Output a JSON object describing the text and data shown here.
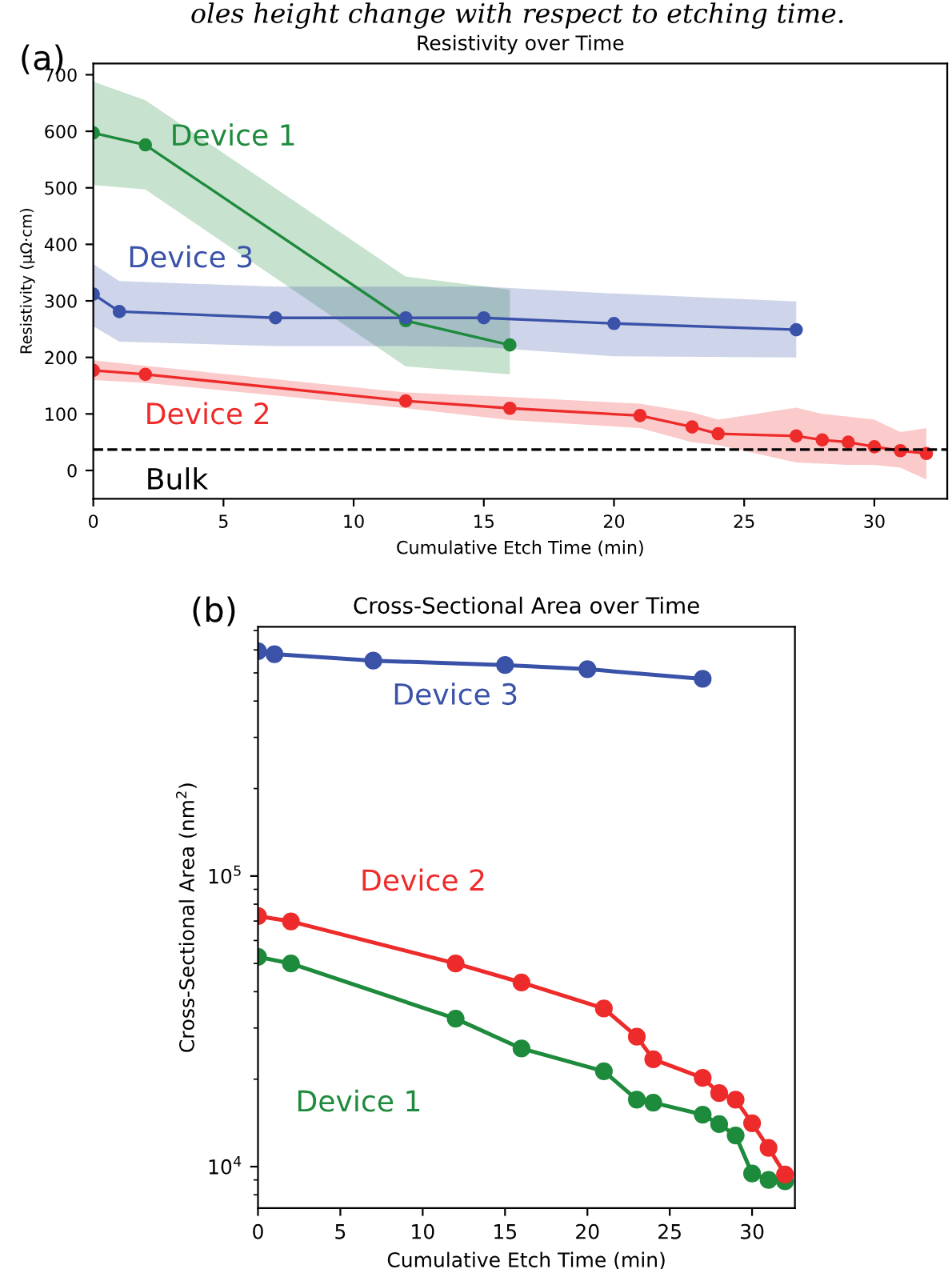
{
  "chart_data": [
    {
      "type": "line",
      "title": "Resistivity over Time",
      "xlabel": "Cumulative Etch Time (min)",
      "ylabel": "Resistivity (μΩ·cm)",
      "xlim": [
        0,
        32.8
      ],
      "ylim": [
        -50,
        720
      ],
      "xticks": [
        0,
        5,
        10,
        15,
        20,
        25,
        30
      ],
      "yticks": [
        0,
        100,
        200,
        300,
        400,
        500,
        600,
        700
      ],
      "grid": false,
      "legend": false,
      "marker": "circle",
      "line_style": "solid",
      "series": [
        {
          "name": "Device 1",
          "color": "#1e8a3c",
          "x": [
            0,
            2,
            12,
            16
          ],
          "values": [
            597,
            576,
            265,
            222
          ],
          "lower": [
            505,
            497,
            184,
            170
          ],
          "upper": [
            688,
            655,
            343,
            320
          ]
        },
        {
          "name": "Device 2",
          "color": "#ee2b2b",
          "x": [
            0,
            2,
            12,
            16,
            21,
            23,
            24,
            27,
            28,
            29,
            30,
            31,
            32
          ],
          "values": [
            177,
            170,
            123,
            110,
            97,
            77,
            65,
            61,
            54,
            50,
            42,
            35,
            30
          ],
          "lower": [
            160,
            155,
            110,
            89,
            75,
            50,
            45,
            14,
            12,
            10,
            10,
            5,
            -16
          ],
          "upper": [
            195,
            185,
            138,
            130,
            118,
            103,
            90,
            111,
            100,
            95,
            90,
            68,
            75
          ]
        },
        {
          "name": "Device 3",
          "color": "#3a52a8",
          "x": [
            0,
            1,
            7,
            12,
            15,
            20,
            27
          ],
          "values": [
            312,
            281,
            270,
            270,
            270,
            260,
            249
          ],
          "lower": [
            255,
            228,
            220,
            220,
            218,
            202,
            200
          ],
          "upper": [
            365,
            335,
            325,
            325,
            325,
            313,
            299
          ]
        }
      ],
      "ref_lines": [
        {
          "axis": "y",
          "value": 37,
          "label": "Bulk",
          "color": "#000000",
          "line_style": "dashed"
        }
      ],
      "annotations": [
        "oles height change with respect to etching time.",
        "(a)"
      ]
    },
    {
      "type": "line",
      "title": "Cross-Sectional Area over Time",
      "xlabel": "Cumulative Etch Time (min)",
      "ylabel": "Cross-Sectional Area (nm$^{2}$)",
      "log": "y",
      "xlim": [
        0,
        32.6
      ],
      "ylim": [
        7200,
        720000
      ],
      "xticks": [
        0,
        5,
        10,
        15,
        20,
        25,
        30
      ],
      "yticks": [
        {
          "value": 10000,
          "label": "10$^{4}$"
        },
        {
          "value": 100000,
          "label": "10$^{5}$"
        }
      ],
      "grid": false,
      "legend": false,
      "marker": "circle",
      "line_style": "solid",
      "series": [
        {
          "name": "Device 1",
          "color": "#1e8a3c",
          "x": [
            0,
            2,
            12,
            16,
            21,
            23,
            24,
            27,
            28,
            29,
            30,
            31,
            32
          ],
          "values": [
            52700,
            50000,
            32300,
            25500,
            21300,
            17000,
            16600,
            15100,
            14000,
            12800,
            9470,
            9000,
            8900
          ]
        },
        {
          "name": "Device 2",
          "color": "#ee2b2b",
          "x": [
            0,
            2,
            12,
            16,
            21,
            23,
            24,
            27,
            28,
            29,
            30,
            31,
            32
          ],
          "values": [
            72800,
            69800,
            50000,
            43000,
            35000,
            28000,
            23400,
            20200,
            17900,
            17000,
            14100,
            11600,
            9400
          ]
        },
        {
          "name": "Device 3",
          "color": "#3a52a8",
          "x": [
            0,
            1,
            7,
            15,
            20,
            27
          ],
          "values": [
            594000,
            580000,
            551000,
            532000,
            515000,
            477000
          ]
        }
      ],
      "annotations": [
        "(b)"
      ]
    }
  ]
}
